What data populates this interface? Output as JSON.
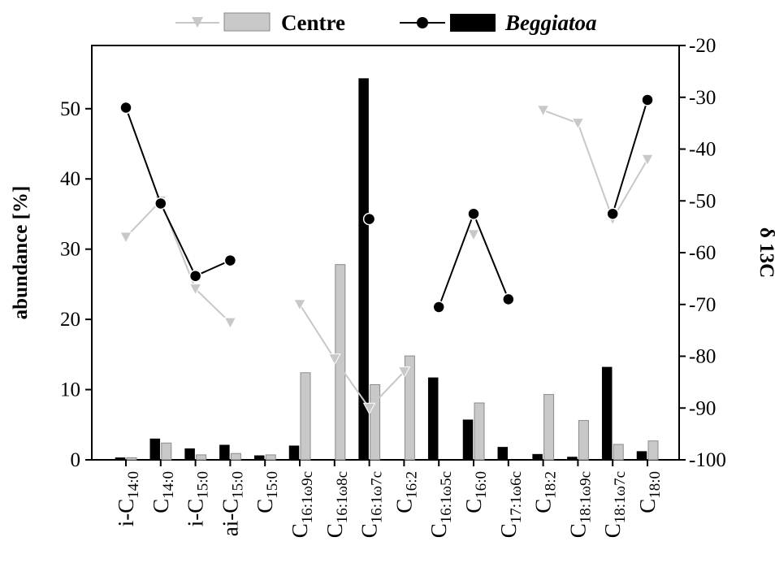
{
  "chart_data": {
    "type": "bar",
    "categories": [
      {
        "main": "i-C",
        "sub": "14:0"
      },
      {
        "main": "C",
        "sub": "14:0"
      },
      {
        "main": "i-C",
        "sub": "15:0"
      },
      {
        "main": "ai-C",
        "sub": "15:0"
      },
      {
        "main": "C",
        "sub": "15:0"
      },
      {
        "main": "C",
        "sub": "16:1ω9c"
      },
      {
        "main": "C",
        "sub": "16:1ω8c"
      },
      {
        "main": "C",
        "sub": "16:1ω7c"
      },
      {
        "main": "C",
        "sub": "16:2"
      },
      {
        "main": "C",
        "sub": "16:1ω5c"
      },
      {
        "main": "C",
        "sub": "16:0"
      },
      {
        "main": "C",
        "sub": "17:1ω6c"
      },
      {
        "main": "C",
        "sub": "18:2"
      },
      {
        "main": "C",
        "sub": "18:1ω9c"
      },
      {
        "main": "C",
        "sub": "18:1ω7c"
      },
      {
        "main": "C",
        "sub": "18:0"
      }
    ],
    "series": [
      {
        "name": "Centre",
        "kind": "bar",
        "color": "#c8c8c8",
        "values": [
          0.3,
          2.4,
          0.7,
          0.9,
          0.7,
          12.4,
          27.8,
          10.7,
          14.8,
          null,
          8.1,
          null,
          9.3,
          5.6,
          2.2,
          2.7
        ]
      },
      {
        "name": "Beggiatoa",
        "kind": "bar",
        "color": "#000000",
        "values": [
          0.3,
          3.0,
          1.6,
          2.1,
          0.6,
          2.0,
          null,
          54.3,
          null,
          11.7,
          5.7,
          1.8,
          0.8,
          0.4,
          13.2,
          1.2
        ]
      },
      {
        "name": "Centre",
        "kind": "line",
        "color": "#c8c8c8",
        "values": [
          -57,
          -50,
          -67,
          -73.5,
          null,
          -70,
          -80.5,
          -90,
          -83,
          null,
          -56.5,
          null,
          -32.5,
          -35,
          -53.5,
          -42
        ]
      },
      {
        "name": "Beggiatoa",
        "kind": "line",
        "color": "#000000",
        "values": [
          -32,
          -50.5,
          -64.5,
          -61.5,
          null,
          null,
          null,
          -53.5,
          null,
          -70.5,
          -52.5,
          -69,
          null,
          null,
          -52.5,
          -30.5
        ]
      }
    ],
    "y_left": {
      "label": "abundance [%]",
      "min": 0,
      "max": 59,
      "ticks": [
        0,
        10,
        20,
        30,
        40,
        50
      ]
    },
    "y_right": {
      "label": "δ 13C",
      "min": -100,
      "max": -20,
      "ticks": [
        -20,
        -30,
        -40,
        -50,
        -60,
        -70,
        -80,
        -90,
        -100
      ]
    },
    "legend": {
      "placement": "top-center",
      "items": [
        {
          "label": "Centre",
          "italic": false
        },
        {
          "label": "Beggiatoa",
          "italic": true
        }
      ]
    },
    "grid": false
  }
}
